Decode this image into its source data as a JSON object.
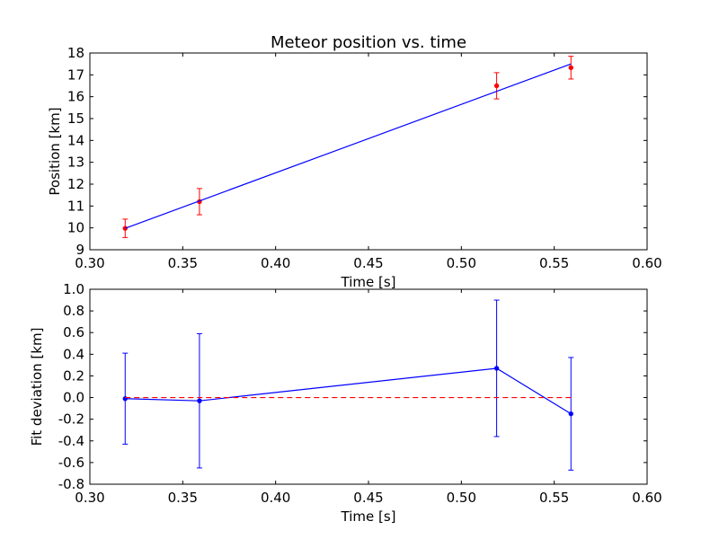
{
  "chart_data": [
    {
      "type": "line",
      "title": "Meteor position vs. time",
      "xlabel": "Time [s]",
      "ylabel": "Position [km]",
      "xlim": [
        0.3,
        0.6
      ],
      "ylim": [
        9,
        18
      ],
      "xticks": [
        "0.30",
        "0.35",
        "0.40",
        "0.45",
        "0.50",
        "0.55",
        "0.60"
      ],
      "yticks": [
        "9",
        "10",
        "11",
        "12",
        "13",
        "14",
        "15",
        "16",
        "17",
        "18"
      ],
      "grid": false,
      "series": [
        {
          "kind": "errorbar",
          "color": "#ff0000",
          "x": [
            0.319,
            0.359,
            0.519,
            0.559
          ],
          "y": [
            9.98,
            11.2,
            16.5,
            17.33
          ],
          "yerr": [
            0.42,
            0.6,
            0.6,
            0.52
          ]
        },
        {
          "kind": "line",
          "color": "#0000ff",
          "x": [
            0.319,
            0.559
          ],
          "y": [
            9.98,
            17.5
          ]
        }
      ]
    },
    {
      "type": "line",
      "title": "",
      "xlabel": "Time [s]",
      "ylabel": "Fit deviation [km]",
      "xlim": [
        0.3,
        0.6
      ],
      "ylim": [
        -0.8,
        1.0
      ],
      "xticks": [
        "0.30",
        "0.35",
        "0.40",
        "0.45",
        "0.50",
        "0.55",
        "0.60"
      ],
      "yticks": [
        "-0.8",
        "-0.6",
        "-0.4",
        "-0.2",
        "0.0",
        "0.2",
        "0.4",
        "0.6",
        "0.8",
        "1.0"
      ],
      "grid": false,
      "series": [
        {
          "kind": "errorbar-line",
          "color": "#0000ff",
          "x": [
            0.319,
            0.359,
            0.519,
            0.559
          ],
          "y": [
            -0.01,
            -0.03,
            0.27,
            -0.15
          ],
          "yerr": [
            0.42,
            0.62,
            0.63,
            0.52
          ]
        },
        {
          "kind": "dashed-line",
          "color": "#ff0000",
          "x": [
            0.319,
            0.559
          ],
          "y": [
            0.0,
            0.0
          ]
        }
      ]
    }
  ]
}
